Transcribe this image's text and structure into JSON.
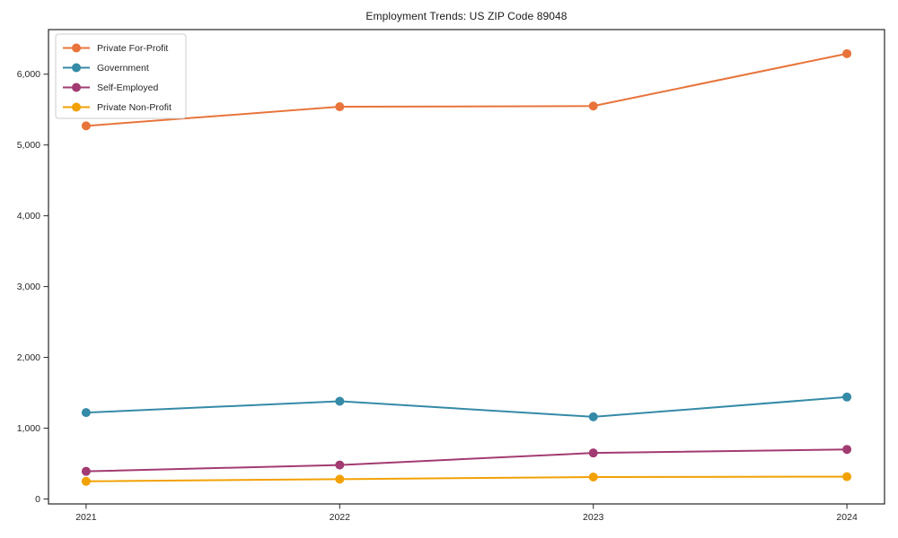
{
  "chart_data": {
    "type": "line",
    "title": "Employment Trends: US ZIP Code 89048",
    "xlabel": "",
    "ylabel": "",
    "categories": [
      "2021",
      "2022",
      "2023",
      "2024"
    ],
    "series": [
      {
        "name": "Private For-Profit",
        "color": "#E8743B",
        "values": [
          5270,
          5540,
          5550,
          6290
        ]
      },
      {
        "name": "Government",
        "color": "#348AA7",
        "values": [
          1220,
          1380,
          1160,
          1440
        ]
      },
      {
        "name": "Self-Employed",
        "color": "#A23B72",
        "values": [
          390,
          480,
          650,
          700
        ]
      },
      {
        "name": "Private Non-Profit",
        "color": "#F2A104",
        "values": [
          250,
          280,
          310,
          315
        ]
      }
    ],
    "yticks": [
      0,
      1000,
      2000,
      3000,
      4000,
      5000,
      6000
    ],
    "ytick_labels": [
      "0",
      "1,000",
      "2,000",
      "3,000",
      "4,000",
      "5,000",
      "6,000"
    ],
    "ylim": [
      -70,
      6630
    ],
    "grid": false,
    "legend_position": "upper-left",
    "marker": "circle",
    "background_color": "#ffffff",
    "spine_color": "#262626"
  }
}
